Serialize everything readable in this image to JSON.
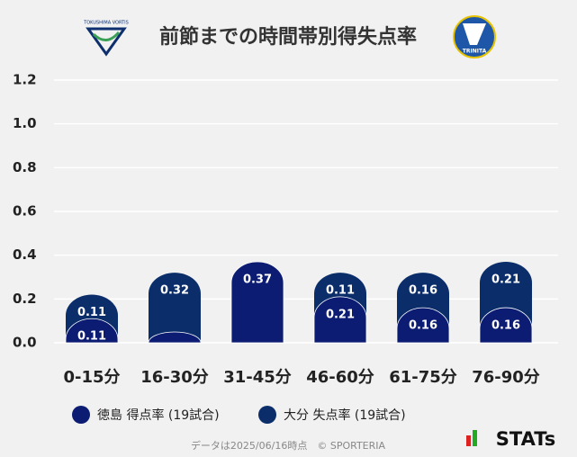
{
  "chart_data": {
    "type": "bar",
    "stacked": true,
    "title": "前節までの時間帯別得失点率",
    "logos": {
      "left": "TOKUSHIMA VORTIS",
      "right": "TRINITA"
    },
    "categories": [
      "0-15分",
      "16-30分",
      "31-45分",
      "46-60分",
      "61-75分",
      "76-90分"
    ],
    "series": [
      {
        "name": "徳島 得点率 (19試合)",
        "color": "#0c1c72",
        "values": [
          0.11,
          0,
          0.37,
          0.21,
          0.16,
          0.16
        ]
      },
      {
        "name": "大分 失点率 (19試合)",
        "color": "#0b2e6b",
        "values": [
          0.11,
          0.32,
          0,
          0.11,
          0.16,
          0.21
        ]
      }
    ],
    "ylim": [
      0,
      1.2
    ],
    "yticks": [
      {
        "value": 0,
        "label": "0.0"
      },
      0.2,
      0.4,
      0.6,
      0.8,
      {
        "value": 1,
        "label": "1.0"
      },
      1.2
    ],
    "grid": true,
    "footer": "データは2025/06/16時点　© SPORTERIA",
    "brand": "STATs"
  }
}
